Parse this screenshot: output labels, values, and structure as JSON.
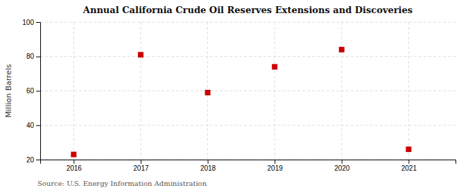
{
  "chart_data": {
    "type": "scatter",
    "title": "Annual California Crude Oil Reserves Extensions and Discoveries",
    "ylabel": "Million Barrels",
    "source": "Source: U.S. Energy Information Administration",
    "x": [
      2016,
      2017,
      2018,
      2019,
      2020,
      2021
    ],
    "values": [
      23.0,
      81.0,
      59.0,
      74.0,
      84.0,
      26.0
    ],
    "color": "#cc0000",
    "marker": "square",
    "xlim": [
      2015.5,
      2021.7
    ],
    "xticks": [
      2016,
      2017,
      2018,
      2019,
      2020,
      2021
    ],
    "ylim": [
      20,
      100
    ],
    "yticks": [
      20,
      40,
      60,
      80,
      100
    ],
    "grid": true
  }
}
